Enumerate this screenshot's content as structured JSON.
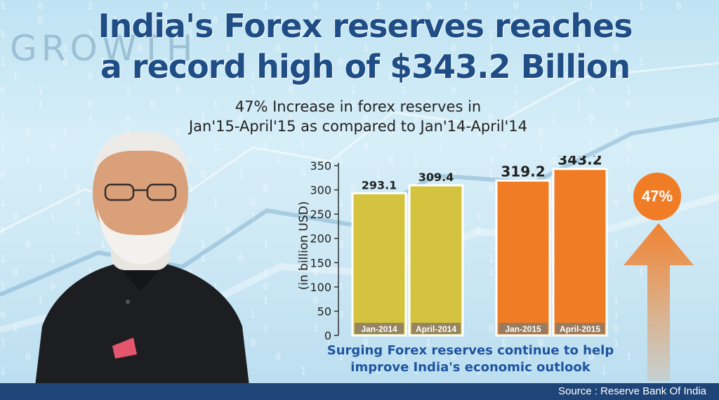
{
  "title_lines": [
    "India's Forex reserves reaches",
    "a record high of $343.2 Billion"
  ],
  "subtitle_lines": [
    "47% Increase in forex reserves in",
    "Jan'15-April'15 as compared to Jan'14-April'14"
  ],
  "background_word": "GROWTH",
  "badge": {
    "text": "47%"
  },
  "footer_note_lines": [
    "Surging Forex reserves continue to help",
    "improve India's economic outlook"
  ],
  "source": "Source : Reserve Bank Of India",
  "colors": {
    "title": "#1f4e86",
    "bar_2014": "#d4c33f",
    "bar_2015": "#f07d26",
    "accent_blue": "#1e4478"
  },
  "chart_data": {
    "type": "bar",
    "categories": [
      "Jan-2014",
      "April-2014",
      "Jan-2015",
      "April-2015"
    ],
    "values": [
      293.1,
      309.4,
      319.2,
      343.2
    ],
    "value_labels": [
      "293.1",
      "309.4",
      "319.2",
      "343.2"
    ],
    "bar_colors": [
      "#d4c33f",
      "#d4c33f",
      "#f07d26",
      "#f07d26"
    ],
    "ylabel": "(in billion USD)",
    "ylim": [
      0,
      350
    ],
    "yticks": [
      0,
      50,
      100,
      150,
      200,
      250,
      300,
      350
    ],
    "grid": false
  }
}
